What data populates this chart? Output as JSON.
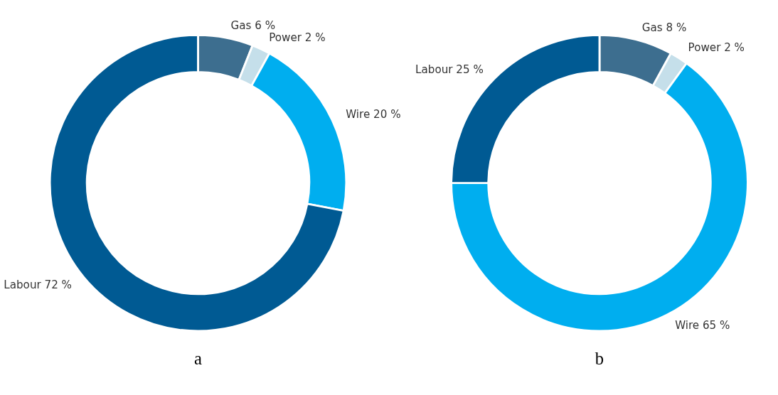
{
  "chart_data": [
    {
      "type": "donut",
      "title": "a",
      "categories": [
        "Gas",
        "Power",
        "Wire",
        "Labour"
      ],
      "values": [
        6,
        2,
        20,
        72
      ],
      "value_labels": [
        "6 %",
        "2 %",
        "20 %",
        "72 %"
      ],
      "colors": [
        "#3d6e8f",
        "#c5dfea",
        "#00aeef",
        "#005a93"
      ],
      "legend": false
    },
    {
      "type": "donut",
      "title": "b",
      "categories": [
        "Gas",
        "Power",
        "Wire",
        "Labour"
      ],
      "values": [
        8,
        2,
        65,
        25
      ],
      "value_labels": [
        "8 %",
        "2 %",
        "65 %",
        "25 %"
      ],
      "colors": [
        "#3d6e8f",
        "#c5dfea",
        "#00aeef",
        "#005a93"
      ],
      "legend": false
    }
  ]
}
